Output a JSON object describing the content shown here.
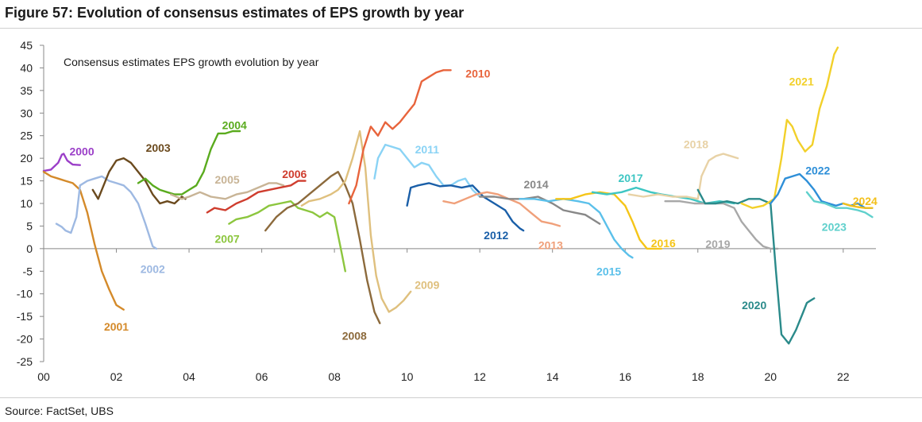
{
  "figure_title": "Figure 57: Evolution of consensus estimates of EPS growth by year",
  "source": "Source: FactSet, UBS",
  "chart_data": {
    "type": "line",
    "title": "Consensus estimates EPS growth evolution by year",
    "xlabel": "",
    "ylabel": "",
    "xlim": [
      0,
      22.9
    ],
    "ylim": [
      -25,
      45
    ],
    "grid": false,
    "x_ticks": [
      0,
      2,
      4,
      6,
      8,
      10,
      12,
      14,
      16,
      18,
      20,
      22
    ],
    "x_tick_labels": [
      "00",
      "02",
      "04",
      "06",
      "08",
      "10",
      "12",
      "14",
      "16",
      "18",
      "20",
      "22"
    ],
    "y_ticks": [
      45,
      40,
      35,
      30,
      25,
      20,
      15,
      10,
      5,
      0,
      -5,
      -10,
      -15,
      -20,
      -25
    ],
    "y_tick_labels": [
      "45",
      "40",
      "35",
      "30",
      "25",
      "20",
      "15",
      "10",
      "5",
      "0",
      "-5",
      "-10",
      "-15",
      "-20",
      "-25"
    ],
    "series": [
      {
        "name": "2000",
        "color": "#9b3fc8",
        "x": [
          0.0,
          0.2,
          0.4,
          0.5,
          0.55,
          0.65,
          0.8,
          1.0
        ],
        "y": [
          17.2,
          17.5,
          19.0,
          20.8,
          21.0,
          19.5,
          18.6,
          18.5
        ]
      },
      {
        "name": "2001",
        "color": "#d48a2a",
        "x": [
          0.0,
          0.2,
          0.4,
          0.6,
          0.8,
          1.0,
          1.2,
          1.4,
          1.6,
          1.8,
          2.0,
          2.2
        ],
        "y": [
          17.0,
          16.0,
          15.5,
          15.0,
          14.5,
          13.0,
          8.0,
          1.0,
          -5.0,
          -9.0,
          -12.5,
          -13.5
        ]
      },
      {
        "name": "2002",
        "color": "#9eb9e2",
        "x": [
          0.35,
          0.5,
          0.6,
          0.75,
          0.9,
          1.0,
          1.2,
          1.4,
          1.6,
          1.8,
          2.0,
          2.2,
          2.4,
          2.6,
          2.8,
          3.0,
          3.1
        ],
        "y": [
          5.5,
          4.8,
          4.0,
          3.5,
          7.0,
          14.0,
          15.0,
          15.5,
          16.0,
          15.0,
          14.5,
          14.0,
          12.5,
          10.0,
          5.5,
          0.5,
          0.0
        ]
      },
      {
        "name": "2003",
        "color": "#6b4a1e",
        "x": [
          1.35,
          1.5,
          1.6,
          1.8,
          2.0,
          2.2,
          2.4,
          2.6,
          2.8,
          3.0,
          3.2,
          3.4,
          3.6,
          3.8,
          3.9
        ],
        "y": [
          13.0,
          11.0,
          13.0,
          17.0,
          19.5,
          20.0,
          19.0,
          17.0,
          15.0,
          12.0,
          10.0,
          10.5,
          10.0,
          11.5,
          11.0
        ]
      },
      {
        "name": "2004",
        "color": "#5aab1e",
        "x": [
          2.6,
          2.8,
          3.0,
          3.2,
          3.4,
          3.6,
          3.8,
          4.0,
          4.2,
          4.4,
          4.6,
          4.8,
          5.0,
          5.2,
          5.4
        ],
        "y": [
          14.5,
          15.5,
          14.0,
          13.0,
          12.5,
          12.0,
          12.0,
          13.0,
          14.0,
          17.0,
          22.0,
          25.5,
          25.5,
          26.0,
          26.0
        ]
      },
      {
        "name": "2005",
        "color": "#c8b496",
        "x": [
          3.5,
          3.8,
          4.0,
          4.3,
          4.6,
          5.0,
          5.3,
          5.6,
          5.9,
          6.2,
          6.4,
          6.6
        ],
        "y": [
          12.0,
          11.0,
          11.5,
          12.5,
          11.5,
          11.0,
          12.0,
          12.5,
          13.5,
          14.5,
          14.5,
          14.0
        ]
      },
      {
        "name": "2006",
        "color": "#cf3d2e",
        "x": [
          4.5,
          4.7,
          5.0,
          5.3,
          5.6,
          5.9,
          6.2,
          6.5,
          6.8,
          7.0,
          7.2
        ],
        "y": [
          8.0,
          9.0,
          8.5,
          10.0,
          11.0,
          12.5,
          13.0,
          13.5,
          14.0,
          15.0,
          15.0
        ]
      },
      {
        "name": "2007",
        "color": "#8cc63e",
        "x": [
          5.1,
          5.3,
          5.6,
          5.9,
          6.2,
          6.5,
          6.8,
          7.0,
          7.2,
          7.4,
          7.6,
          7.8,
          8.0,
          8.2,
          8.3
        ],
        "y": [
          5.5,
          6.5,
          7.0,
          8.0,
          9.5,
          10.0,
          10.5,
          9.0,
          8.5,
          8.0,
          7.0,
          8.0,
          7.0,
          -1.0,
          -5.0
        ]
      },
      {
        "name": "2008",
        "color": "#8c6a3c",
        "x": [
          6.1,
          6.4,
          6.7,
          7.0,
          7.3,
          7.6,
          7.9,
          8.1,
          8.3,
          8.5,
          8.7,
          8.9,
          9.1,
          9.25
        ],
        "y": [
          4.0,
          7.0,
          9.0,
          10.0,
          12.0,
          14.0,
          16.0,
          17.0,
          14.0,
          10.0,
          2.0,
          -7.0,
          -14.0,
          -16.5
        ]
      },
      {
        "name": "2009",
        "color": "#dfc07e",
        "x": [
          7.1,
          7.3,
          7.6,
          7.9,
          8.1,
          8.3,
          8.5,
          8.7,
          8.85,
          9.0,
          9.15,
          9.3,
          9.5,
          9.7,
          9.9,
          10.1
        ],
        "y": [
          9.5,
          10.5,
          11.0,
          12.0,
          13.0,
          15.0,
          20.0,
          26.0,
          18.0,
          3.0,
          -6.0,
          -11.0,
          -14.0,
          -13.0,
          -11.5,
          -9.5
        ]
      },
      {
        "name": "2010",
        "color": "#e8643c",
        "x": [
          8.4,
          8.6,
          8.8,
          9.0,
          9.2,
          9.4,
          9.6,
          9.8,
          10.0,
          10.2,
          10.4,
          10.6,
          10.8,
          11.0,
          11.2
        ],
        "y": [
          10.0,
          14.0,
          22.0,
          27.0,
          25.0,
          28.0,
          26.5,
          28.0,
          30.0,
          32.0,
          37.0,
          38.0,
          39.0,
          39.5,
          39.5
        ]
      },
      {
        "name": "2011",
        "color": "#8ad3f5",
        "x": [
          9.1,
          9.2,
          9.4,
          9.6,
          9.8,
          10.0,
          10.2,
          10.4,
          10.6,
          10.8,
          11.0,
          11.2,
          11.4,
          11.6,
          11.8,
          12.0
        ],
        "y": [
          15.5,
          20.0,
          23.0,
          22.5,
          22.0,
          20.0,
          18.0,
          19.0,
          18.5,
          16.0,
          14.0,
          14.0,
          15.0,
          15.5,
          13.0,
          11.5
        ]
      },
      {
        "name": "2012",
        "color": "#1a5fa8",
        "x": [
          10.0,
          10.1,
          10.3,
          10.6,
          10.9,
          11.2,
          11.5,
          11.8,
          12.1,
          12.4,
          12.7,
          12.9,
          13.1,
          13.2
        ],
        "y": [
          9.5,
          13.5,
          14.0,
          14.5,
          13.8,
          14.0,
          13.5,
          14.0,
          11.5,
          10.0,
          8.5,
          6.0,
          4.5,
          4.0
        ]
      },
      {
        "name": "2013",
        "color": "#f0a07a",
        "x": [
          11.0,
          11.3,
          11.6,
          11.9,
          12.2,
          12.5,
          12.8,
          13.1,
          13.4,
          13.7,
          14.0,
          14.2
        ],
        "y": [
          10.5,
          10.0,
          11.0,
          12.0,
          12.5,
          12.0,
          11.0,
          10.0,
          8.0,
          6.0,
          5.5,
          5.0
        ]
      },
      {
        "name": "2014",
        "color": "#888888",
        "x": [
          12.0,
          12.4,
          12.8,
          13.2,
          13.6,
          14.0,
          14.3,
          14.6,
          14.9,
          15.1,
          15.3
        ],
        "y": [
          11.5,
          11.5,
          11.0,
          11.0,
          11.5,
          10.0,
          8.5,
          8.0,
          7.5,
          6.5,
          5.5
        ]
      },
      {
        "name": "2015",
        "color": "#5bc0ea",
        "x": [
          13.1,
          13.5,
          13.9,
          14.3,
          14.7,
          15.0,
          15.3,
          15.5,
          15.7,
          15.9,
          16.1,
          16.2
        ],
        "y": [
          11.0,
          11.0,
          10.5,
          11.0,
          10.5,
          10.0,
          8.0,
          5.0,
          2.0,
          0.0,
          -1.5,
          -2.0
        ]
      },
      {
        "name": "2016",
        "color": "#f5c518",
        "x": [
          14.1,
          14.5,
          14.9,
          15.3,
          15.7,
          16.0,
          16.2,
          16.4,
          16.6,
          16.8,
          17.0
        ],
        "y": [
          11.0,
          11.0,
          12.0,
          12.5,
          12.0,
          9.5,
          6.0,
          2.0,
          0.0,
          0.0,
          0.0
        ]
      },
      {
        "name": "2017",
        "color": "#3ec6c3",
        "x": [
          15.1,
          15.5,
          15.9,
          16.3,
          16.7,
          17.0,
          17.4,
          17.8,
          18.2,
          18.6,
          19.0
        ],
        "y": [
          12.5,
          12.0,
          12.5,
          13.5,
          12.5,
          12.0,
          11.5,
          11.0,
          10.0,
          10.5,
          10.0
        ]
      },
      {
        "name": "2018",
        "color": "#e8d2a6",
        "x": [
          16.1,
          16.5,
          16.9,
          17.3,
          17.7,
          18.0,
          18.1,
          18.3,
          18.5,
          18.7,
          18.9,
          19.1
        ],
        "y": [
          12.0,
          11.5,
          12.0,
          11.5,
          11.5,
          11.0,
          16.0,
          19.5,
          20.5,
          21.0,
          20.5,
          20.0
        ]
      },
      {
        "name": "2019",
        "color": "#a8a8a8",
        "x": [
          17.1,
          17.5,
          17.9,
          18.3,
          18.7,
          19.0,
          19.2,
          19.4,
          19.6,
          19.8,
          20.0,
          20.2
        ],
        "y": [
          10.5,
          10.5,
          10.0,
          10.0,
          10.0,
          9.0,
          6.0,
          4.0,
          2.0,
          0.5,
          0.0,
          0.0
        ]
      },
      {
        "name": "2020",
        "color": "#2a8a8a",
        "x": [
          18.0,
          18.2,
          18.5,
          18.8,
          19.1,
          19.4,
          19.7,
          20.0,
          20.15,
          20.3,
          20.5,
          20.7,
          20.9,
          21.0,
          21.1,
          21.2
        ],
        "y": [
          13.0,
          10.0,
          10.0,
          10.5,
          10.0,
          11.0,
          11.0,
          10.0,
          -5.0,
          -19.0,
          -21.0,
          -18.0,
          -14.0,
          -12.0,
          -11.5,
          -11.0
        ]
      },
      {
        "name": "2021",
        "color": "#f2d02a",
        "x": [
          19.2,
          19.5,
          19.8,
          20.1,
          20.3,
          20.45,
          20.6,
          20.75,
          20.95,
          21.15,
          21.35,
          21.55,
          21.75,
          21.85
        ],
        "y": [
          10.0,
          9.0,
          9.5,
          11.0,
          20.0,
          28.5,
          27.0,
          24.0,
          21.5,
          23.0,
          31.0,
          36.0,
          43.0,
          44.5
        ]
      },
      {
        "name": "2022",
        "color": "#2e8fd8",
        "x": [
          20.0,
          20.2,
          20.4,
          20.6,
          20.8,
          21.0,
          21.2,
          21.4,
          21.6,
          21.8,
          22.0,
          22.2,
          22.4,
          22.6,
          22.8
        ],
        "y": [
          10.0,
          12.0,
          15.5,
          16.0,
          16.5,
          15.0,
          13.0,
          10.5,
          10.0,
          9.5,
          10.0,
          9.5,
          10.0,
          9.0,
          9.0
        ]
      },
      {
        "name": "2023",
        "color": "#5fd0cc",
        "x": [
          21.0,
          21.2,
          21.5,
          21.8,
          22.1,
          22.4,
          22.6,
          22.8
        ],
        "y": [
          12.5,
          10.5,
          10.0,
          9.0,
          9.0,
          8.5,
          8.0,
          7.0
        ]
      },
      {
        "name": "2024",
        "color": "#f3c01a",
        "x": [
          22.0,
          22.2,
          22.4,
          22.6,
          22.8
        ],
        "y": [
          10.0,
          9.5,
          9.2,
          9.0,
          9.0
        ]
      }
    ],
    "annotations": [
      {
        "text": "2000",
        "x": 1.05,
        "y": 21.5,
        "color": "#9b3fc8"
      },
      {
        "text": "2001",
        "x": 2.0,
        "y": -17.3,
        "color": "#d48a2a"
      },
      {
        "text": "2002",
        "x": 3.0,
        "y": -4.5,
        "color": "#9eb9e2"
      },
      {
        "text": "2003",
        "x": 3.15,
        "y": 22.3,
        "color": "#6b4a1e"
      },
      {
        "text": "2004",
        "x": 5.25,
        "y": 27.3,
        "color": "#5aab1e"
      },
      {
        "text": "2005",
        "x": 5.05,
        "y": 15.3,
        "color": "#c8b496"
      },
      {
        "text": "2006",
        "x": 6.9,
        "y": 16.5,
        "color": "#cf3d2e"
      },
      {
        "text": "2007",
        "x": 5.05,
        "y": 2.2,
        "color": "#8cc63e"
      },
      {
        "text": "2008",
        "x": 8.55,
        "y": -19.3,
        "color": "#8c6a3c"
      },
      {
        "text": "2009",
        "x": 10.55,
        "y": -8.0,
        "color": "#dfc07e"
      },
      {
        "text": "2010",
        "x": 11.95,
        "y": 38.8,
        "color": "#e8643c"
      },
      {
        "text": "2011",
        "x": 10.55,
        "y": 22.0,
        "color": "#8ad3f5"
      },
      {
        "text": "2012",
        "x": 12.45,
        "y": 3.0,
        "color": "#1a5fa8"
      },
      {
        "text": "2013",
        "x": 13.95,
        "y": 0.8,
        "color": "#f0a07a"
      },
      {
        "text": "2014",
        "x": 13.55,
        "y": 14.2,
        "color": "#888888"
      },
      {
        "text": "2015",
        "x": 15.55,
        "y": -5.0,
        "color": "#5bc0ea"
      },
      {
        "text": "2016",
        "x": 17.05,
        "y": 1.2,
        "color": "#f5c518"
      },
      {
        "text": "2017",
        "x": 16.15,
        "y": 15.6,
        "color": "#3ec6c3"
      },
      {
        "text": "2018",
        "x": 17.95,
        "y": 23.1,
        "color": "#e8d2a6"
      },
      {
        "text": "2019",
        "x": 18.55,
        "y": 1.0,
        "color": "#a8a8a8"
      },
      {
        "text": "2020",
        "x": 19.55,
        "y": -12.5,
        "color": "#2a8a8a"
      },
      {
        "text": "2021",
        "x": 20.85,
        "y": 37.0,
        "color": "#f2d02a"
      },
      {
        "text": "2022",
        "x": 21.3,
        "y": 17.3,
        "color": "#2e8fd8"
      },
      {
        "text": "2023",
        "x": 21.75,
        "y": 4.8,
        "color": "#5fd0cc"
      },
      {
        "text": "2024",
        "x": 22.6,
        "y": 10.5,
        "color": "#f3c01a"
      }
    ]
  }
}
